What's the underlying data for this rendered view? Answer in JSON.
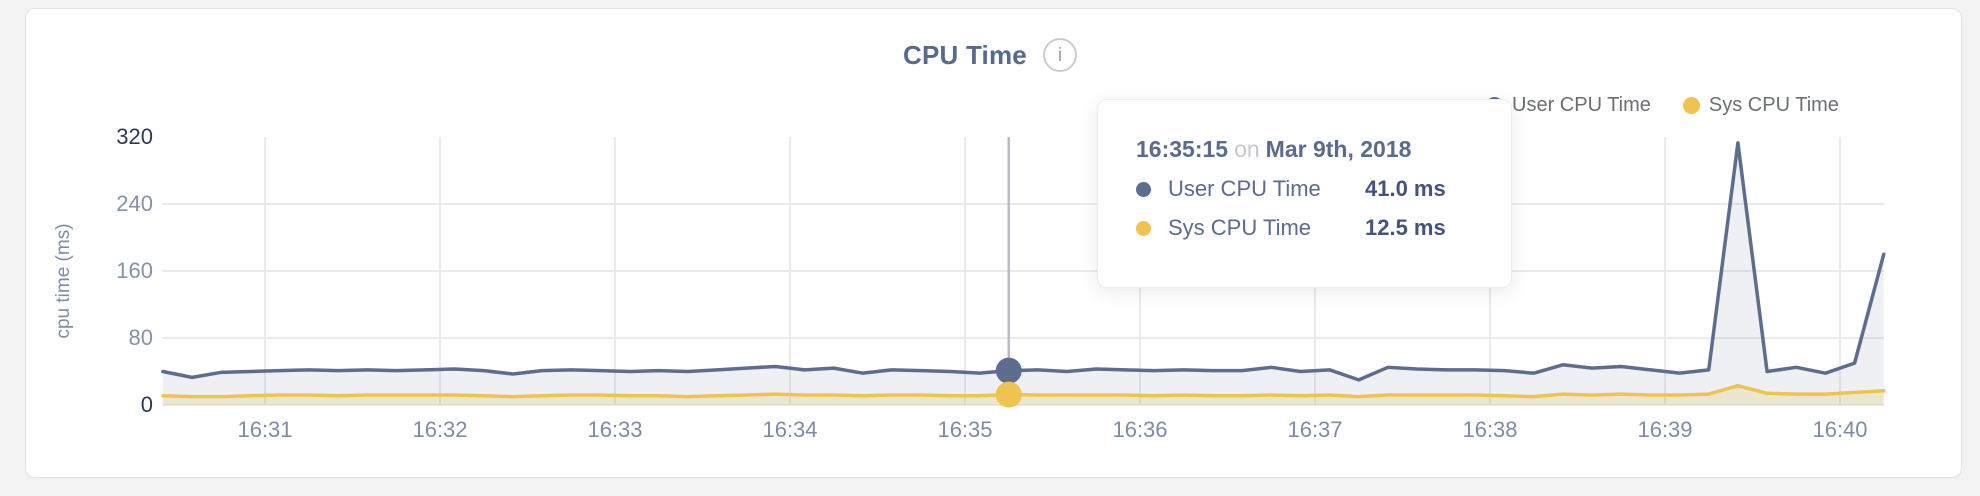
{
  "header": {
    "title": "CPU Time",
    "info_glyph": "i"
  },
  "legend": {
    "user": "User CPU Time",
    "sys": "Sys CPU Time"
  },
  "tooltip": {
    "time": "16:35:15",
    "connector": "on",
    "date": "Mar 9th, 2018",
    "rows": [
      {
        "label": "User CPU Time",
        "value": "41.0 ms"
      },
      {
        "label": "Sys CPU Time",
        "value": "12.5 ms"
      }
    ]
  },
  "colors": {
    "user_series": "#5c6d8e",
    "sys_series": "#eec34f",
    "title": "#566a8e",
    "tick_strong": "#2b3a55",
    "tick_light": "#8492a8",
    "gridline": "#ebebed",
    "hover_line": "#b8bbc1"
  },
  "chart_data": {
    "type": "line",
    "title": "CPU Time",
    "xlabel": "",
    "ylabel": "cpu time (ms)",
    "ylim": [
      0,
      320
    ],
    "y_ticks": [
      0,
      80,
      160,
      240,
      320
    ],
    "x_tick_labels": [
      "16:31",
      "16:32",
      "16:33",
      "16:34",
      "16:35",
      "16:36",
      "16:37",
      "16:38",
      "16:39",
      "16:40"
    ],
    "grid": true,
    "legend_position": "top-right",
    "x": [
      "16:30:25",
      "16:30:35",
      "16:30:45",
      "16:30:55",
      "16:31:05",
      "16:31:15",
      "16:31:25",
      "16:31:35",
      "16:31:45",
      "16:31:55",
      "16:32:05",
      "16:32:15",
      "16:32:25",
      "16:32:35",
      "16:32:45",
      "16:32:55",
      "16:33:05",
      "16:33:15",
      "16:33:25",
      "16:33:35",
      "16:33:45",
      "16:33:55",
      "16:34:05",
      "16:34:15",
      "16:34:25",
      "16:34:35",
      "16:34:45",
      "16:34:55",
      "16:35:05",
      "16:35:15",
      "16:35:25",
      "16:35:35",
      "16:35:45",
      "16:35:55",
      "16:36:05",
      "16:36:15",
      "16:36:25",
      "16:36:35",
      "16:36:45",
      "16:36:55",
      "16:37:05",
      "16:37:15",
      "16:37:25",
      "16:37:35",
      "16:37:45",
      "16:37:55",
      "16:38:05",
      "16:38:15",
      "16:38:25",
      "16:38:35",
      "16:38:45",
      "16:38:55",
      "16:39:05",
      "16:39:15",
      "16:39:25",
      "16:39:35",
      "16:39:45",
      "16:39:55",
      "16:40:05",
      "16:40:15"
    ],
    "series": [
      {
        "name": "User CPU Time",
        "color": "#5c6d8e",
        "fill": "rgba(92,109,142,0.10)",
        "values": [
          40,
          33,
          39,
          40,
          41,
          42,
          41,
          42,
          41,
          42,
          43,
          41,
          37,
          41,
          42,
          41,
          40,
          41,
          40,
          42,
          44,
          46,
          42,
          44,
          38,
          42,
          41,
          40,
          38,
          41,
          42,
          40,
          43,
          42,
          41,
          42,
          41,
          41,
          45,
          40,
          42,
          30,
          45,
          43,
          42,
          42,
          41,
          38,
          48,
          44,
          46,
          42,
          38,
          42,
          313,
          40,
          45,
          38,
          50,
          180
        ]
      },
      {
        "name": "Sys CPU Time",
        "color": "#eec34f",
        "fill": "rgba(238,195,79,0.22)",
        "values": [
          11,
          10,
          10,
          11,
          12,
          12,
          11,
          12,
          12,
          12,
          12,
          11,
          10,
          11,
          12,
          12,
          11,
          11,
          10,
          11,
          12,
          13,
          12,
          12,
          11,
          12,
          12,
          11,
          11,
          12.5,
          12,
          12,
          12,
          12,
          11,
          12,
          11,
          11,
          12,
          11,
          12,
          10,
          12,
          12,
          12,
          12,
          11,
          10,
          13,
          12,
          13,
          12,
          12,
          13,
          23,
          14,
          13,
          13,
          15,
          17
        ]
      }
    ],
    "hover": {
      "time": "16:35:15",
      "date": "Mar 9th, 2018",
      "values": {
        "User CPU Time": 41.0,
        "Sys CPU Time": 12.5
      }
    }
  }
}
